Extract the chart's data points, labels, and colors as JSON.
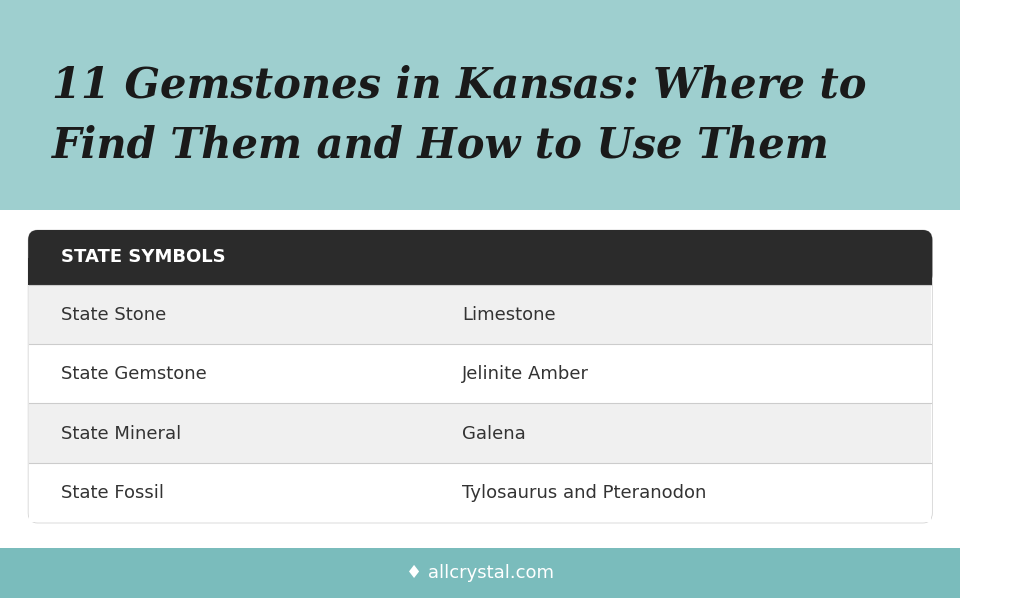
{
  "title_line1": "11 Gemstones in Kansas: Where to",
  "title_line2": "Find Them and How to Use Them",
  "header_bg": "#9ecfcf",
  "table_header_text": "STATE SYMBOLS",
  "table_header_bg": "#2b2b2b",
  "table_header_text_color": "#ffffff",
  "row_bg_odd": "#f0f0f0",
  "row_bg_even": "#ffffff",
  "footer_bg": "#7abcbc",
  "footer_text": "♦ allcrystal.com",
  "footer_text_color": "#ffffff",
  "main_bg": "#ffffff",
  "title_color": "#1a1a1a",
  "table_text_color": "#333333",
  "rows": [
    [
      "State Stone",
      "Limestone"
    ],
    [
      "State Gemstone",
      "Jelinite Amber"
    ],
    [
      "State Mineral",
      "Galena"
    ],
    [
      "State Fossil",
      "Tylosaurus and Pteranodon"
    ]
  ],
  "divider_color": "#cccccc"
}
